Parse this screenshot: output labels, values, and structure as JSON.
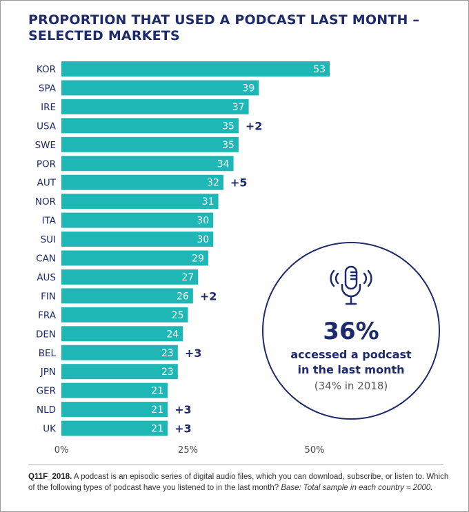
{
  "title_line1": "PROPORTION THAT USED A PODCAST LAST MONTH –",
  "title_line2": "SELECTED MARKETS",
  "chart_data": {
    "type": "bar",
    "orientation": "horizontal",
    "title": "PROPORTION THAT USED A PODCAST LAST MONTH – SELECTED MARKETS",
    "categories": [
      "KOR",
      "SPA",
      "IRE",
      "USA",
      "SWE",
      "POR",
      "AUT",
      "NOR",
      "ITA",
      "SUI",
      "CAN",
      "AUS",
      "FIN",
      "FRA",
      "DEN",
      "BEL",
      "JPN",
      "GER",
      "NLD",
      "UK"
    ],
    "values": [
      53,
      39,
      37,
      35,
      35,
      34,
      32,
      31,
      30,
      30,
      29,
      27,
      26,
      25,
      24,
      23,
      23,
      21,
      21,
      21
    ],
    "changes": [
      "",
      "",
      "",
      "+2",
      "",
      "",
      "+5",
      "",
      "",
      "",
      "",
      "",
      "+2",
      "",
      "",
      "+3",
      "",
      "",
      "+3",
      "+3"
    ],
    "x_ticks": [
      "0%",
      "25%",
      "50%"
    ],
    "xlim": [
      0,
      75
    ],
    "bar_color": "#1fb6b6",
    "grid": false
  },
  "callout": {
    "icon": "microphone-icon",
    "value": "36%",
    "line1": "accessed a podcast",
    "line2": "in the last month",
    "line3": "(34% in 2018)"
  },
  "footnote": {
    "code": "Q11F_2018.",
    "text": " A podcast is an episodic series of digital audio files, which you can download, subscribe, or listen to. Which of the following types of podcast have you listened to in the last month? ",
    "base": "Base: Total sample in each country ≈ 2000."
  },
  "colors": {
    "navy": "#1d2a6b",
    "teal": "#1fb6b6"
  }
}
